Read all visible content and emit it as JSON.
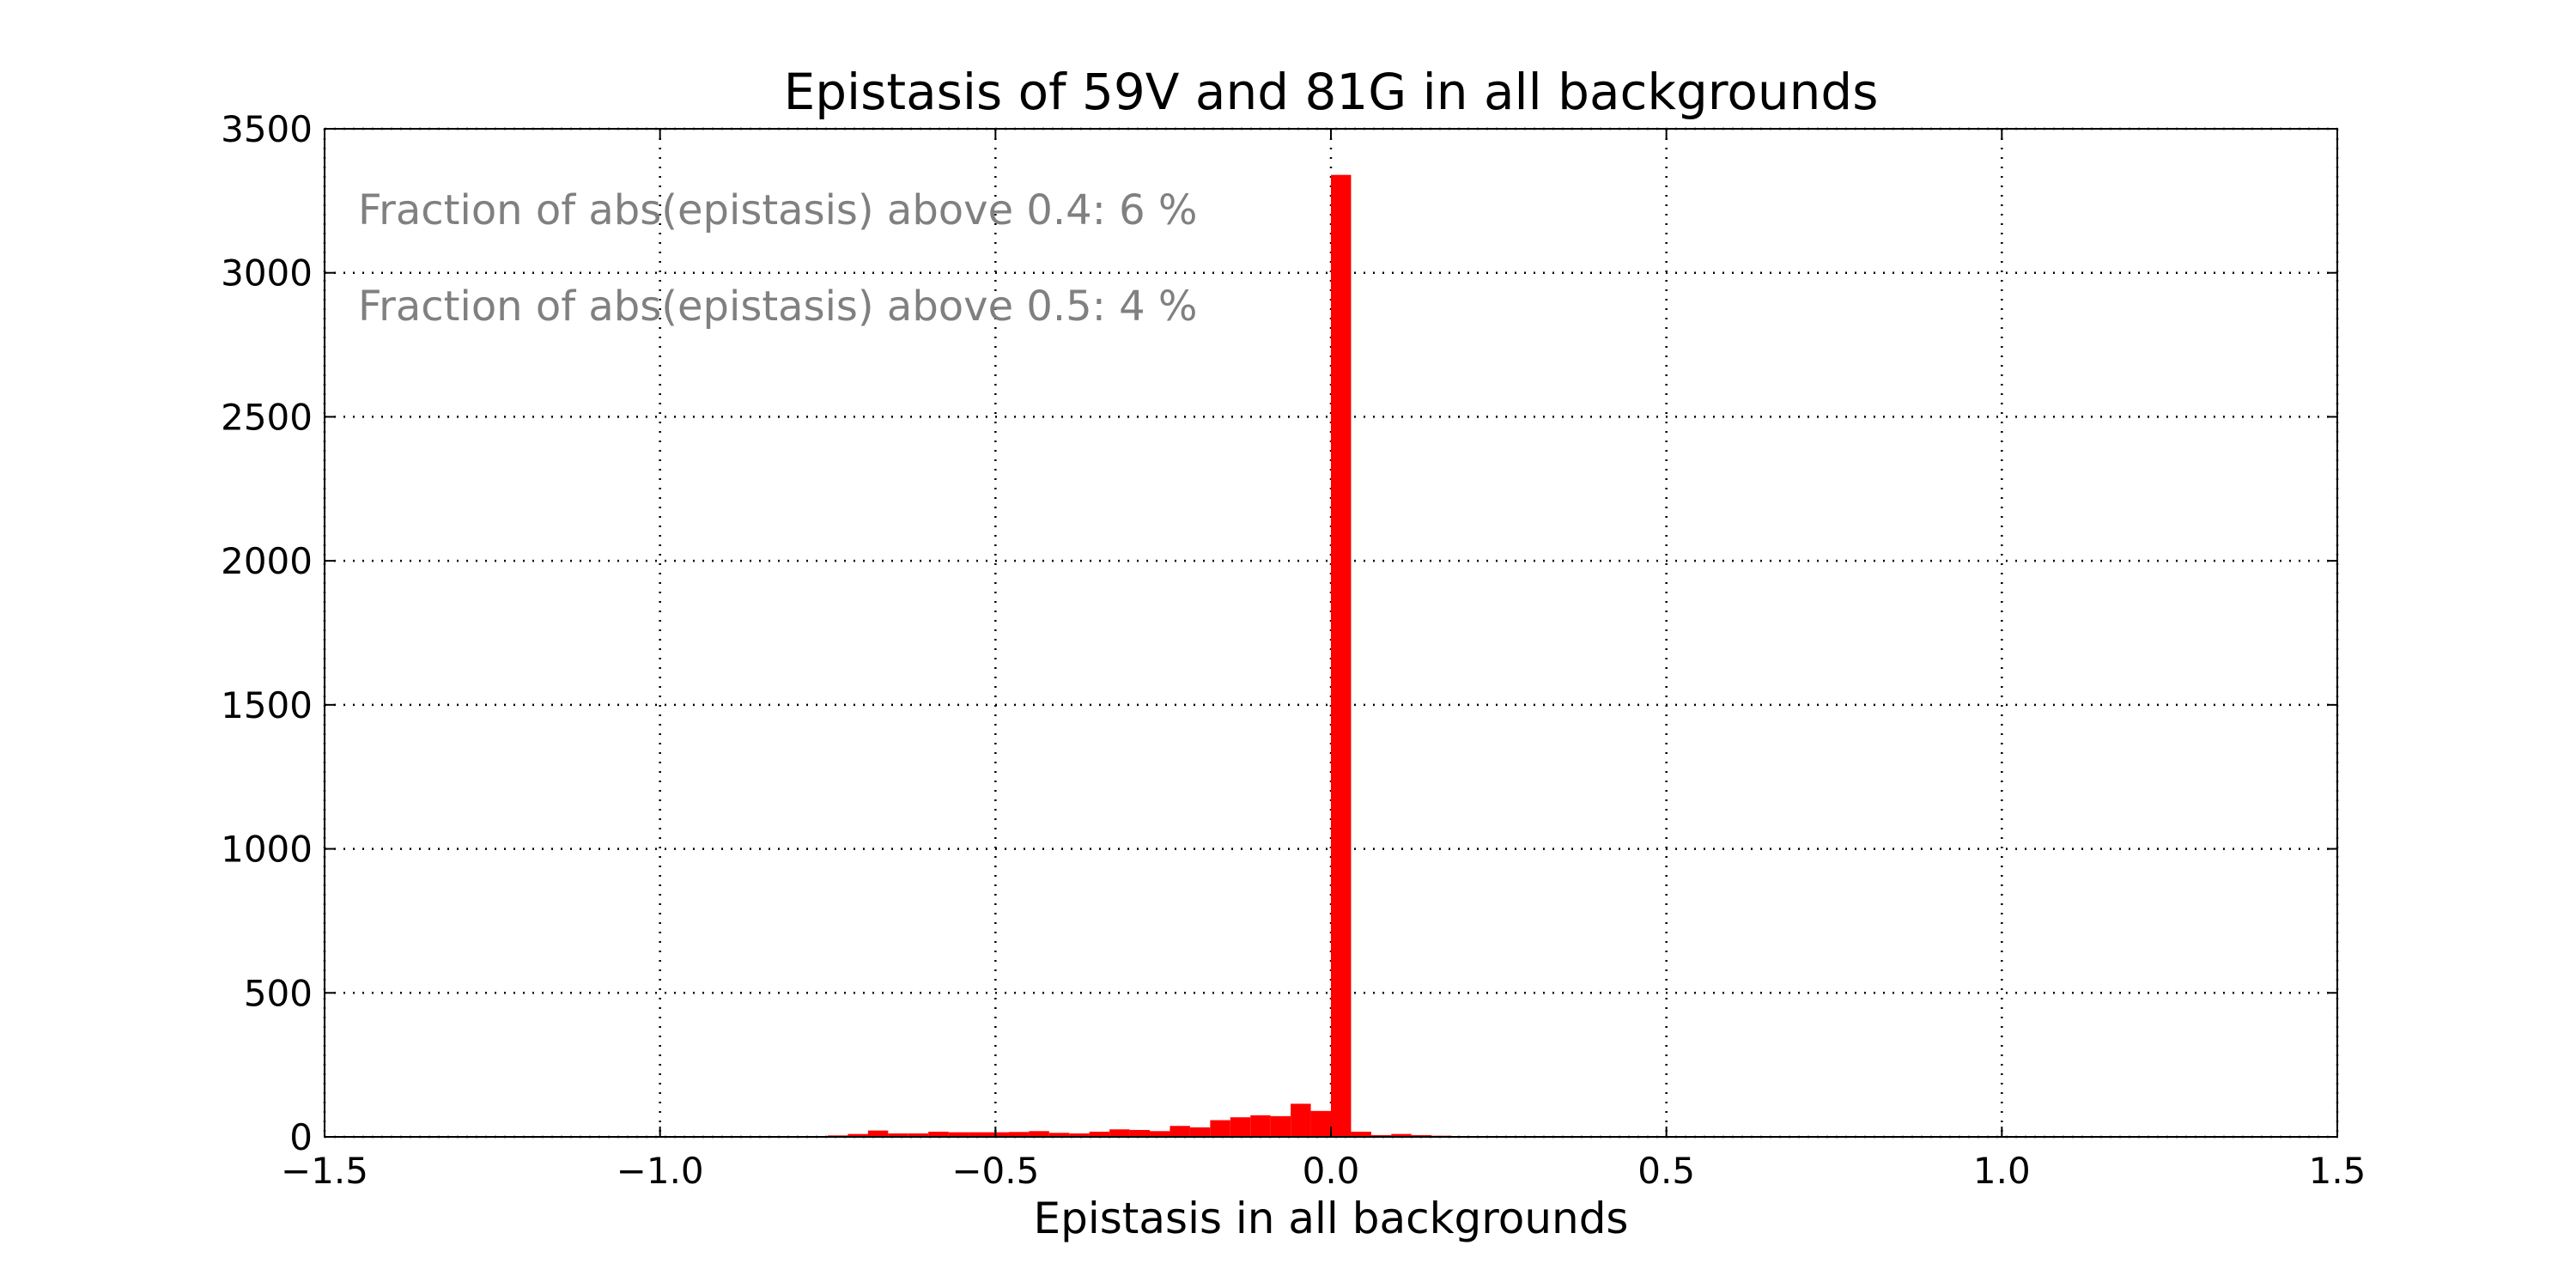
{
  "chart_data": {
    "type": "bar",
    "title": "Epistasis of 59V and 81G in all backgrounds",
    "xlabel": "Epistasis in all backgrounds",
    "ylabel": "",
    "xlim": [
      -1.5,
      1.5
    ],
    "ylim": [
      0,
      3500
    ],
    "xticks": [
      -1.5,
      -1.0,
      -0.5,
      0.0,
      0.5,
      1.0,
      1.5
    ],
    "xtick_labels": [
      "−1.5",
      "−1.0",
      "−0.5",
      "0.0",
      "0.5",
      "1.0",
      "1.5"
    ],
    "yticks": [
      0,
      500,
      1000,
      1500,
      2000,
      2500,
      3000,
      3500
    ],
    "ytick_labels": [
      "0",
      "500",
      "1000",
      "1500",
      "2000",
      "2500",
      "3000",
      "3500"
    ],
    "grid": true,
    "bar_color": "#ff0000",
    "bin_width": 0.03,
    "bins": [
      {
        "x": -0.78,
        "value": 3
      },
      {
        "x": -0.75,
        "value": 5
      },
      {
        "x": -0.72,
        "value": 10
      },
      {
        "x": -0.69,
        "value": 22
      },
      {
        "x": -0.66,
        "value": 12
      },
      {
        "x": -0.63,
        "value": 12
      },
      {
        "x": -0.6,
        "value": 18
      },
      {
        "x": -0.57,
        "value": 16
      },
      {
        "x": -0.54,
        "value": 16
      },
      {
        "x": -0.51,
        "value": 16
      },
      {
        "x": -0.48,
        "value": 17
      },
      {
        "x": -0.45,
        "value": 20
      },
      {
        "x": -0.42,
        "value": 14
      },
      {
        "x": -0.39,
        "value": 12
      },
      {
        "x": -0.36,
        "value": 18
      },
      {
        "x": -0.33,
        "value": 26
      },
      {
        "x": -0.3,
        "value": 24
      },
      {
        "x": -0.27,
        "value": 20
      },
      {
        "x": -0.24,
        "value": 38
      },
      {
        "x": -0.21,
        "value": 33
      },
      {
        "x": -0.18,
        "value": 58
      },
      {
        "x": -0.15,
        "value": 68
      },
      {
        "x": -0.12,
        "value": 75
      },
      {
        "x": -0.09,
        "value": 72
      },
      {
        "x": -0.06,
        "value": 115
      },
      {
        "x": -0.03,
        "value": 90
      },
      {
        "x": 0.0,
        "value": 3340
      },
      {
        "x": 0.03,
        "value": 18
      },
      {
        "x": 0.06,
        "value": 6
      },
      {
        "x": 0.09,
        "value": 10
      },
      {
        "x": 0.12,
        "value": 6
      },
      {
        "x": 0.15,
        "value": 4
      },
      {
        "x": 0.18,
        "value": 3
      }
    ],
    "annotations": [
      {
        "text": "Fraction of abs(epistasis) above 0.4: 6 %",
        "color": "#808080"
      },
      {
        "text": "Fraction of abs(epistasis) above 0.5: 4 %",
        "color": "#808080"
      }
    ]
  }
}
